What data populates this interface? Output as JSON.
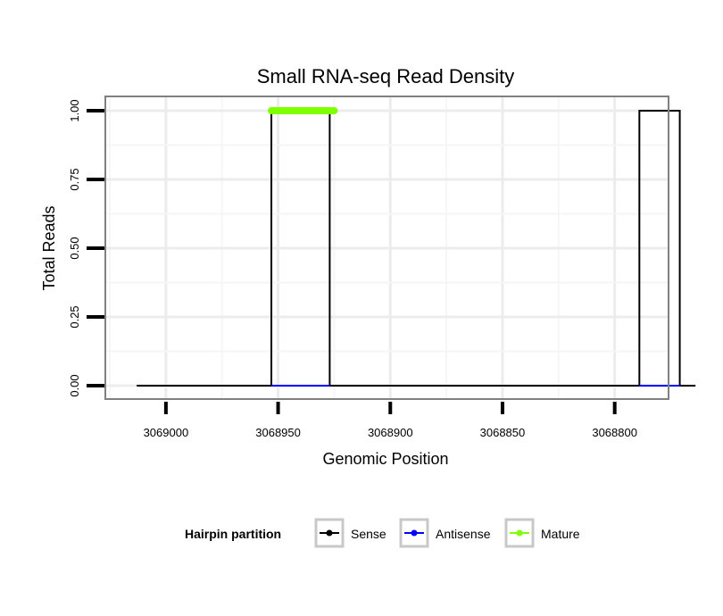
{
  "chart_data": {
    "type": "line",
    "title": "Small RNA-seq Read Density",
    "xlabel": "Genomic Position",
    "ylabel": "Total Reads",
    "x_reversed": true,
    "xlim": [
      3069027,
      3068776
    ],
    "ylim": [
      0,
      1.05
    ],
    "x_ticks": [
      3069000,
      3068950,
      3068900,
      3068850,
      3068800
    ],
    "x_tick_labels": [
      "3069000",
      "3068950",
      "3068900",
      "3068850",
      "3068800"
    ],
    "y_ticks": [
      0,
      0.25,
      0.5,
      0.75,
      1.0
    ],
    "y_tick_labels": [
      "0.00",
      "0.25",
      "0.50",
      "0.75",
      "1.00"
    ],
    "grid": true,
    "legend_position": "bottom",
    "legend_title": "Hairpin partition",
    "series": [
      {
        "name": "Sense",
        "color": "#000000",
        "x": [
          3069013,
          3068953,
          3068953,
          3068927,
          3068927,
          3068789,
          3068789,
          3068771,
          3068771,
          3068764
        ],
        "y": [
          0,
          0,
          1,
          1,
          0,
          0,
          1,
          1,
          0,
          0
        ]
      },
      {
        "name": "Antisense",
        "color": "#0000ff",
        "x": [
          3068953,
          3068927,
          3068789,
          3068771
        ],
        "y": [
          0,
          0,
          0,
          0
        ],
        "segments": [
          [
            0,
            1
          ],
          [
            2,
            3
          ]
        ]
      },
      {
        "name": "Mature",
        "color": "#7fff00",
        "x": [
          3068953,
          3068925
        ],
        "y": [
          1,
          1
        ]
      }
    ]
  }
}
